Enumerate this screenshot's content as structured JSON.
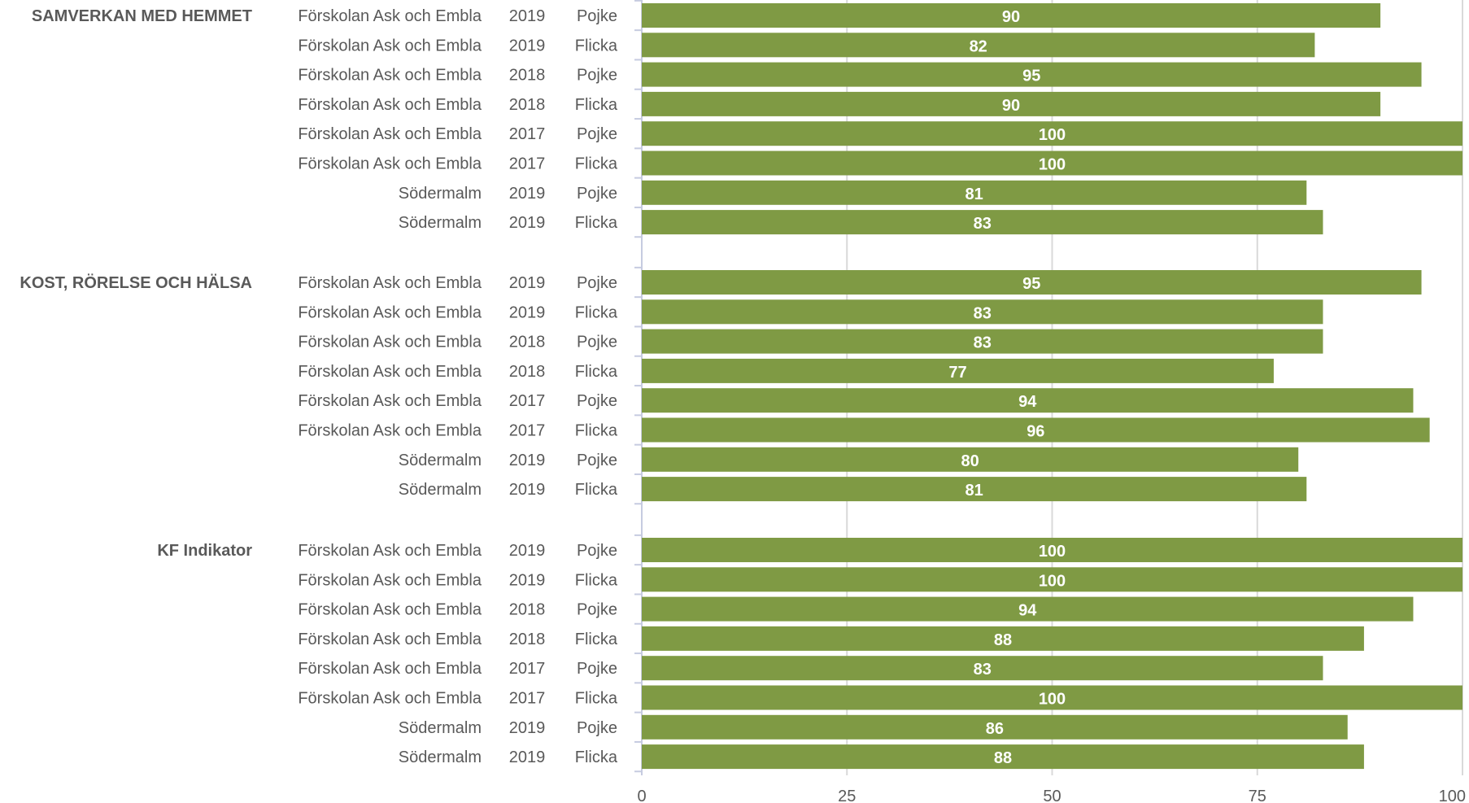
{
  "chart_data": {
    "type": "bar",
    "orientation": "horizontal",
    "xlim": [
      0,
      100
    ],
    "x_ticks": [
      "0",
      "25",
      "50",
      "75",
      "100"
    ],
    "grid": true,
    "bar_color": "#7F9A44",
    "grid_color": "#D9D9D9",
    "axis_color": "#C6CBE0",
    "label_color": "#595959",
    "groups": [
      {
        "name": "SAMVERKAN MED HEMMET",
        "rows": [
          {
            "unit": "Förskolan Ask och Embla",
            "year": "2019",
            "gender": "Pojke",
            "value": 90
          },
          {
            "unit": "Förskolan Ask och Embla",
            "year": "2019",
            "gender": "Flicka",
            "value": 82
          },
          {
            "unit": "Förskolan Ask och Embla",
            "year": "2018",
            "gender": "Pojke",
            "value": 95
          },
          {
            "unit": "Förskolan Ask och Embla",
            "year": "2018",
            "gender": "Flicka",
            "value": 90
          },
          {
            "unit": "Förskolan Ask och Embla",
            "year": "2017",
            "gender": "Pojke",
            "value": 100
          },
          {
            "unit": "Förskolan Ask och Embla",
            "year": "2017",
            "gender": "Flicka",
            "value": 100
          },
          {
            "unit": "Södermalm",
            "year": "2019",
            "gender": "Pojke",
            "value": 81
          },
          {
            "unit": "Södermalm",
            "year": "2019",
            "gender": "Flicka",
            "value": 83
          }
        ]
      },
      {
        "name": "KOST, RÖRELSE OCH HÄLSA",
        "rows": [
          {
            "unit": "Förskolan Ask och Embla",
            "year": "2019",
            "gender": "Pojke",
            "value": 95
          },
          {
            "unit": "Förskolan Ask och Embla",
            "year": "2019",
            "gender": "Flicka",
            "value": 83
          },
          {
            "unit": "Förskolan Ask och Embla",
            "year": "2018",
            "gender": "Pojke",
            "value": 83
          },
          {
            "unit": "Förskolan Ask och Embla",
            "year": "2018",
            "gender": "Flicka",
            "value": 77
          },
          {
            "unit": "Förskolan Ask och Embla",
            "year": "2017",
            "gender": "Pojke",
            "value": 94
          },
          {
            "unit": "Förskolan Ask och Embla",
            "year": "2017",
            "gender": "Flicka",
            "value": 96
          },
          {
            "unit": "Södermalm",
            "year": "2019",
            "gender": "Pojke",
            "value": 80
          },
          {
            "unit": "Södermalm",
            "year": "2019",
            "gender": "Flicka",
            "value": 81
          }
        ]
      },
      {
        "name": "KF Indikator",
        "rows": [
          {
            "unit": "Förskolan Ask och Embla",
            "year": "2019",
            "gender": "Pojke",
            "value": 100
          },
          {
            "unit": "Förskolan Ask och Embla",
            "year": "2019",
            "gender": "Flicka",
            "value": 100
          },
          {
            "unit": "Förskolan Ask och Embla",
            "year": "2018",
            "gender": "Pojke",
            "value": 94
          },
          {
            "unit": "Förskolan Ask och Embla",
            "year": "2018",
            "gender": "Flicka",
            "value": 88
          },
          {
            "unit": "Förskolan Ask och Embla",
            "year": "2017",
            "gender": "Pojke",
            "value": 83
          },
          {
            "unit": "Förskolan Ask och Embla",
            "year": "2017",
            "gender": "Flicka",
            "value": 100
          },
          {
            "unit": "Södermalm",
            "year": "2019",
            "gender": "Pojke",
            "value": 86
          },
          {
            "unit": "Södermalm",
            "year": "2019",
            "gender": "Flicka",
            "value": 88
          }
        ]
      }
    ]
  }
}
